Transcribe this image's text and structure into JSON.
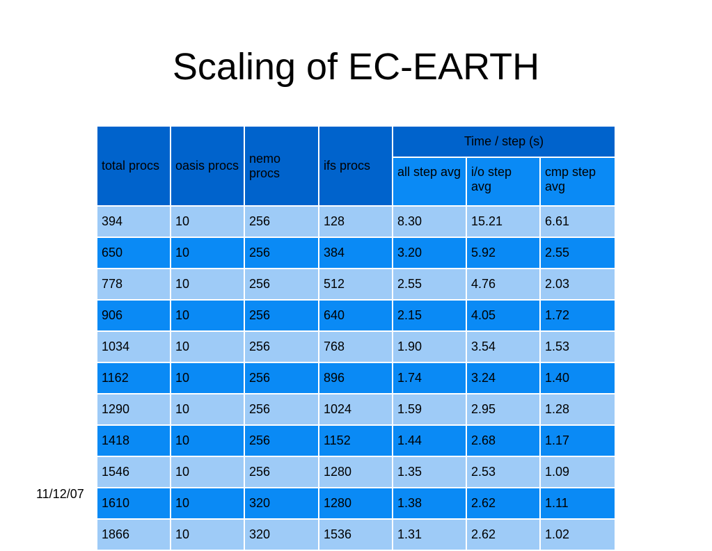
{
  "slide": {
    "title": "Scaling of EC-EARTH",
    "date": "11/12/07"
  },
  "table": {
    "headers": {
      "total_procs": "total procs",
      "oasis_procs": "oasis procs",
      "nemo_procs": "nemo procs",
      "ifs_procs": "ifs procs",
      "time_group": "Time / step (s)",
      "all_step_avg": "all step avg",
      "io_step_avg": "i/o step avg",
      "cmp_step_avg": "cmp step avg"
    },
    "rows": [
      [
        "394",
        "10",
        "256",
        "128",
        "8.30",
        "15.21",
        "6.61"
      ],
      [
        "650",
        "10",
        "256",
        "384",
        "3.20",
        "5.92",
        "2.55"
      ],
      [
        "778",
        "10",
        "256",
        "512",
        "2.55",
        "4.76",
        "2.03"
      ],
      [
        "906",
        "10",
        "256",
        "640",
        "2.15",
        "4.05",
        "1.72"
      ],
      [
        "1034",
        "10",
        "256",
        "768",
        "1.90",
        "3.54",
        "1.53"
      ],
      [
        "1162",
        "10",
        "256",
        "896",
        "1.74",
        "3.24",
        "1.40"
      ],
      [
        "1290",
        "10",
        "256",
        "1024",
        "1.59",
        "2.95",
        "1.28"
      ],
      [
        "1418",
        "10",
        "256",
        "1152",
        "1.44",
        "2.68",
        "1.17"
      ],
      [
        "1546",
        "10",
        "256",
        "1280",
        "1.35",
        "2.53",
        "1.09"
      ],
      [
        "1610",
        "10",
        "320",
        "1280",
        "1.38",
        "2.62",
        "1.11"
      ],
      [
        "1866",
        "10",
        "320",
        "1536",
        "1.31",
        "2.62",
        "1.02"
      ]
    ]
  },
  "colors": {
    "header_dark": "#0063cc",
    "header_sub": "#0a8af5",
    "row_light": "#9ecbf7",
    "row_dark": "#0a8af5"
  }
}
